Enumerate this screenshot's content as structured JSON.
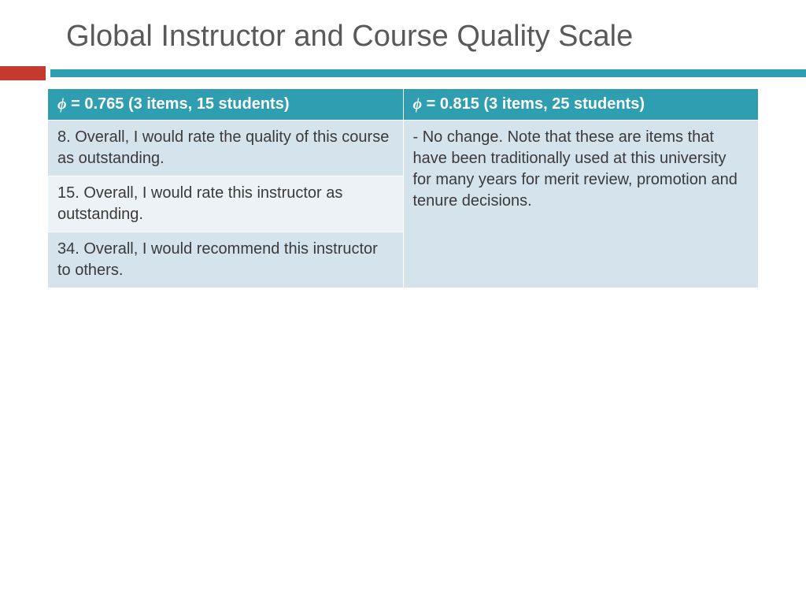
{
  "title": "Global Instructor and Course Quality Scale",
  "colors": {
    "title_text": "#595959",
    "red_block": "#c43a2f",
    "teal_bar": "#2f9eb0",
    "header_bg": "#2f9eb0",
    "header_text": "#ffffff",
    "row_alt_a": "#d5e3ec",
    "row_alt_b": "#ecf2f6",
    "body_text": "#3a3a3a",
    "background": "#ffffff"
  },
  "typography": {
    "title_fontsize": 38,
    "header_fontsize": 20,
    "cell_fontsize": 20
  },
  "table": {
    "type": "table",
    "columns": [
      {
        "phi_symbol": "ϕ",
        "phi_value": "0.765",
        "detail": "(3 items, 15 students)"
      },
      {
        "phi_symbol": "ϕ",
        "phi_value": "0.815",
        "detail": "(3 items, 25 students)"
      }
    ],
    "left_items": [
      "8. Overall, I would rate the quality of this course as outstanding.",
      "15. Overall, I would rate this instructor as outstanding.",
      "34. Overall, I would recommend this instructor to others."
    ],
    "right_note": "- No change.  Note that these are items that have been traditionally used at this university for many years for merit review, promotion and tenure decisions."
  }
}
